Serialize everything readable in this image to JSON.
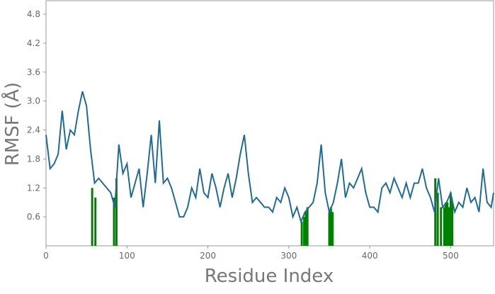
{
  "chart_data": {
    "type": "line",
    "xlabel": "Residue Index",
    "ylabel": "RMSF (Å)",
    "xlim": [
      0,
      553
    ],
    "ylim": [
      0,
      5.08
    ],
    "xticks": [
      0,
      100,
      200,
      300,
      400,
      500
    ],
    "yticks": [
      0.6,
      1.2,
      1.8,
      2.4,
      {
        "value": 3,
        "label": "3.0"
      },
      3.6,
      4.2,
      4.8
    ],
    "series": [
      {
        "color": "#236b8e",
        "x": [
          0,
          5,
          10,
          15,
          20,
          25,
          30,
          35,
          40,
          45,
          50,
          55,
          60,
          65,
          70,
          75,
          80,
          85,
          90,
          95,
          100,
          105,
          110,
          115,
          120,
          125,
          130,
          135,
          140,
          145,
          150,
          155,
          160,
          165,
          170,
          175,
          180,
          185,
          190,
          195,
          200,
          205,
          210,
          215,
          220,
          225,
          230,
          235,
          240,
          245,
          250,
          255,
          260,
          265,
          270,
          275,
          280,
          285,
          290,
          295,
          300,
          305,
          310,
          315,
          320,
          325,
          330,
          335,
          340,
          345,
          350,
          355,
          360,
          365,
          370,
          375,
          380,
          385,
          390,
          395,
          400,
          405,
          410,
          415,
          420,
          425,
          430,
          435,
          440,
          445,
          450,
          455,
          460,
          465,
          470,
          475,
          480,
          485,
          490,
          495,
          500,
          505,
          510,
          515,
          520,
          525,
          530,
          535,
          540,
          545,
          550,
          553
        ],
        "values": [
          2.3,
          1.6,
          1.7,
          1.9,
          2.8,
          2.0,
          2.4,
          2.3,
          2.8,
          3.2,
          2.9,
          2.0,
          1.3,
          1.4,
          1.3,
          1.2,
          1.1,
          0.8,
          2.1,
          1.5,
          1.7,
          1.0,
          1.3,
          1.6,
          0.8,
          1.5,
          2.3,
          1.3,
          2.6,
          1.3,
          1.4,
          1.2,
          0.9,
          0.6,
          0.6,
          0.8,
          1.2,
          1.0,
          1.6,
          1.1,
          1.0,
          1.5,
          1.2,
          0.8,
          1.2,
          1.5,
          1.0,
          1.4,
          1.9,
          2.3,
          1.5,
          0.9,
          1.0,
          0.9,
          0.8,
          0.8,
          0.7,
          1.0,
          0.9,
          1.2,
          1.0,
          0.6,
          0.8,
          0.5,
          0.7,
          0.8,
          0.9,
          1.3,
          2.1,
          1.1,
          0.7,
          0.9,
          1.3,
          1.8,
          1.0,
          1.3,
          1.2,
          1.4,
          1.6,
          1.1,
          0.8,
          0.8,
          0.7,
          1.2,
          1.3,
          1.1,
          1.4,
          1.2,
          1.0,
          1.3,
          1.0,
          1.3,
          1.3,
          1.6,
          1.2,
          1.0,
          0.7,
          1.4,
          0.8,
          0.9,
          1.1,
          0.7,
          0.9,
          0.8,
          1.2,
          0.9,
          1.0,
          0.7,
          1.6,
          0.9,
          0.8,
          1.1
        ]
      },
      {
        "type": "bar",
        "color": "#008000",
        "x": [
          57,
          61,
          84,
          87,
          316,
          319,
          321,
          323,
          350,
          352,
          354,
          481,
          484,
          488,
          492,
          494,
          496,
          498,
          500,
          502
        ],
        "values": [
          1.2,
          1.0,
          1.0,
          1.4,
          0.5,
          0.6,
          0.7,
          0.8,
          0.7,
          0.8,
          0.7,
          1.4,
          1.1,
          0.8,
          0.8,
          0.9,
          0.9,
          0.8,
          1.1,
          0.9
        ]
      }
    ]
  }
}
